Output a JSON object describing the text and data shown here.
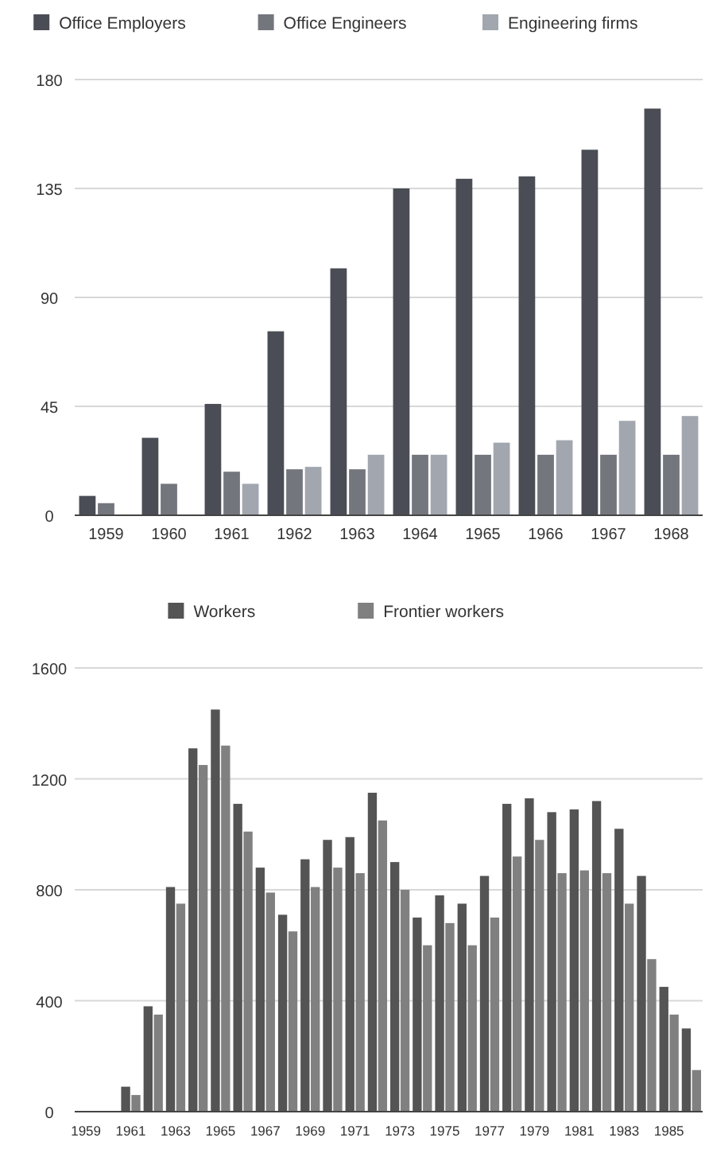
{
  "chart_data": [
    {
      "type": "bar",
      "categories": [
        "1959",
        "1960",
        "1961",
        "1962",
        "1963",
        "1964",
        "1965",
        "1966",
        "1967",
        "1968"
      ],
      "series": [
        {
          "name": "Office Employers",
          "color": "#4a4d55",
          "values": [
            8,
            32,
            46,
            76,
            102,
            135,
            139,
            140,
            151,
            168
          ]
        },
        {
          "name": "Office Engineers",
          "color": "#73767d",
          "values": [
            5,
            13,
            18,
            19,
            19,
            25,
            25,
            25,
            25,
            25
          ]
        },
        {
          "name": "Engineering firms",
          "color": "#a2a6ae",
          "values": [
            null,
            null,
            13,
            20,
            25,
            25,
            30,
            31,
            39,
            41
          ]
        }
      ],
      "ylim": [
        0,
        180
      ],
      "yticks": [
        0,
        45,
        90,
        135,
        180
      ],
      "grid": "y",
      "legend": "top"
    },
    {
      "type": "bar",
      "categories": [
        "1959",
        null,
        "1961",
        null,
        "1963",
        null,
        "1965",
        null,
        "1967",
        null,
        "1969",
        null,
        "1971",
        null,
        "1973",
        null,
        "1975",
        null,
        "1977",
        null,
        "1979",
        null,
        "1981",
        null,
        "1983",
        null,
        "1985",
        null
      ],
      "series": [
        {
          "name": "Workers",
          "color": "#545454",
          "values": [
            null,
            null,
            90,
            380,
            810,
            1310,
            1450,
            1110,
            880,
            710,
            910,
            980,
            990,
            1150,
            900,
            700,
            780,
            750,
            850,
            1110,
            1130,
            1080,
            1090,
            1120,
            1020,
            850,
            450,
            300
          ]
        },
        {
          "name": "Frontier workers",
          "color": "#808080",
          "values": [
            null,
            null,
            60,
            350,
            750,
            1250,
            1320,
            1010,
            790,
            650,
            810,
            880,
            860,
            1050,
            800,
            600,
            680,
            600,
            700,
            920,
            980,
            860,
            870,
            860,
            750,
            550,
            350,
            150
          ]
        }
      ],
      "ylim": [
        0,
        1600
      ],
      "yticks": [
        0,
        400,
        800,
        1200,
        1600
      ],
      "grid": "y",
      "legend": "top"
    }
  ]
}
